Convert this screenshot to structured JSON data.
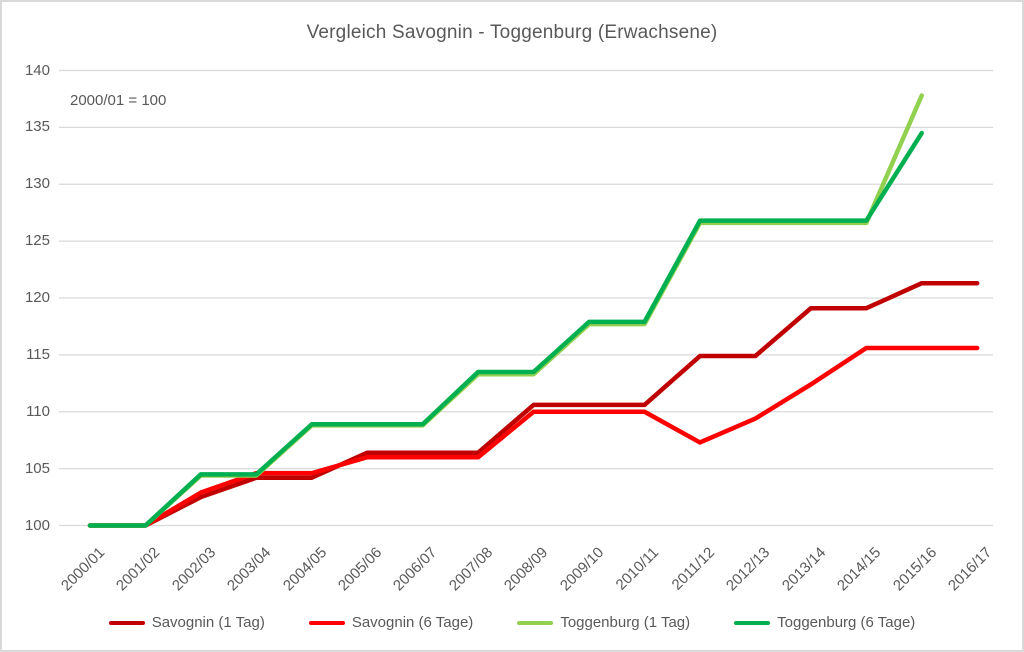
{
  "chart_data": {
    "type": "line",
    "title": "Vergleich Savognin - Toggenburg (Erwachsene)",
    "annotation": "2000/01 = 100",
    "categories": [
      "2000/01",
      "2001/02",
      "2002/03",
      "2003/04",
      "2004/05",
      "2005/06",
      "2006/07",
      "2007/08",
      "2008/09",
      "2009/10",
      "2010/11",
      "2011/12",
      "2012/13",
      "2013/14",
      "2014/15",
      "2015/16",
      "2016/17"
    ],
    "series": [
      {
        "name": "Savognin (1 Tag)",
        "color": "#C00000",
        "values": [
          100,
          100,
          102.5,
          104.2,
          104.2,
          106.4,
          106.4,
          106.4,
          110.6,
          110.6,
          110.6,
          114.9,
          114.9,
          119.1,
          119.1,
          121.3,
          121.3
        ]
      },
      {
        "name": "Savognin (6 Tage)",
        "color": "#FF0000",
        "values": [
          100,
          100,
          102.9,
          104.6,
          104.6,
          106.0,
          106.0,
          106.0,
          110.0,
          110.0,
          110.0,
          107.3,
          109.4,
          112.4,
          115.6,
          115.6,
          115.6
        ]
      },
      {
        "name": "Toggenburg (1 Tag)",
        "color": "#92D050",
        "values": [
          100,
          100,
          104.4,
          104.4,
          108.8,
          108.8,
          108.8,
          113.3,
          113.3,
          117.7,
          117.7,
          126.6,
          126.6,
          126.6,
          126.6,
          137.8,
          null
        ]
      },
      {
        "name": "Toggenburg (6 Tage)",
        "color": "#00B050",
        "values": [
          100,
          100,
          104.5,
          104.5,
          108.9,
          108.9,
          108.9,
          113.5,
          113.5,
          117.9,
          117.9,
          126.8,
          126.8,
          126.8,
          126.8,
          134.5,
          null
        ]
      }
    ],
    "ylim": [
      100,
      140
    ],
    "ytick_step": 5,
    "xlabel": "",
    "ylabel": "",
    "grid": "horizontal",
    "grid_color": "#D9D9D9",
    "axis_text_color": "#595959",
    "legend_position": "bottom"
  }
}
